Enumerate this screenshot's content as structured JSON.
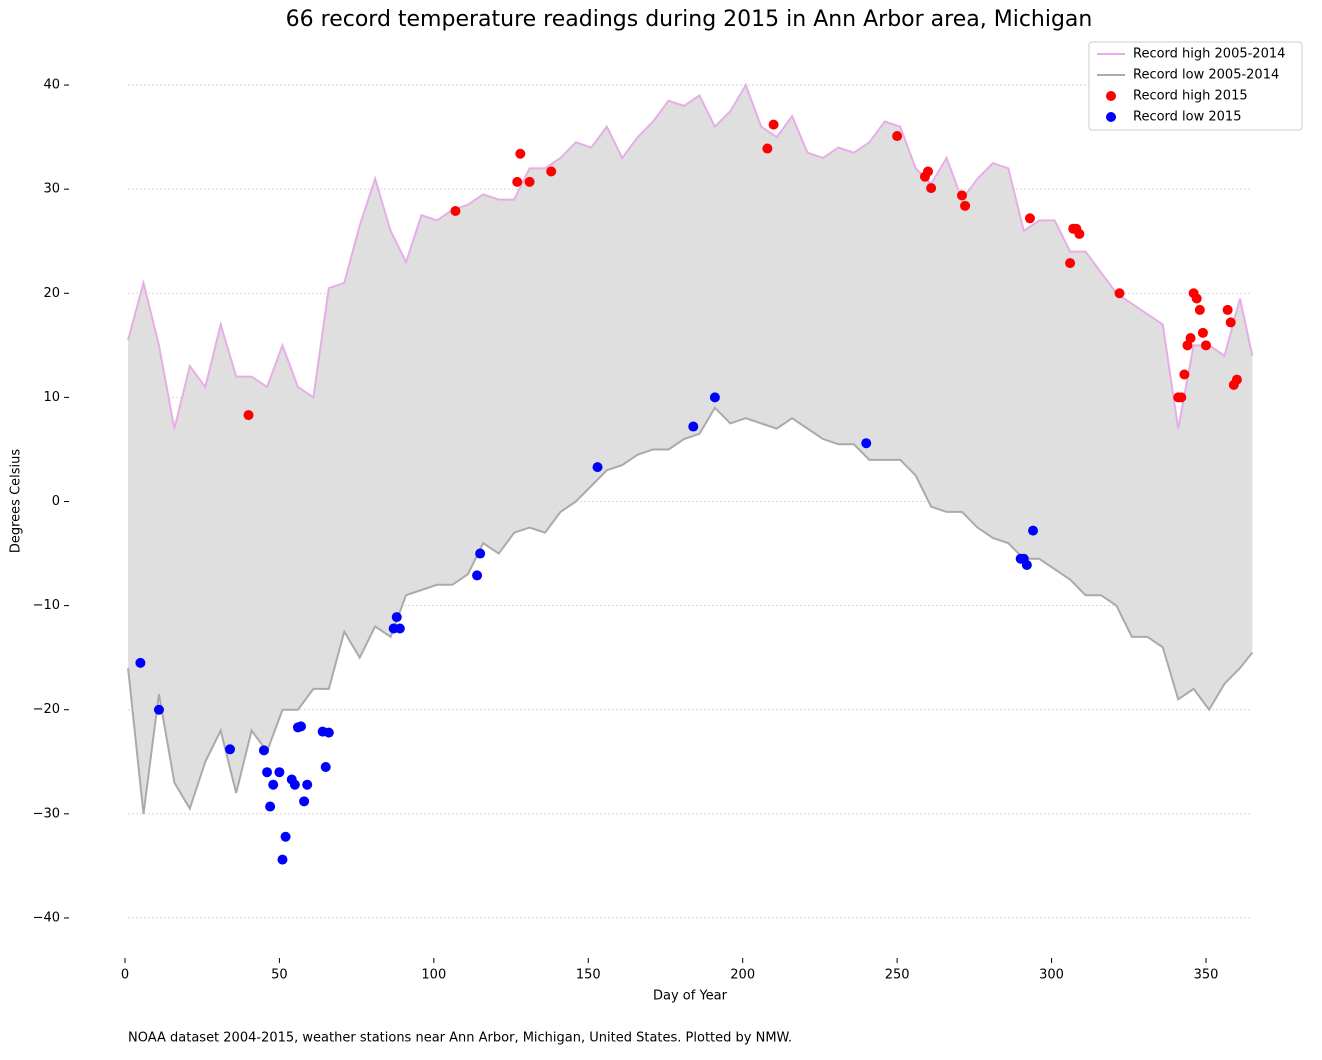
{
  "chart_data": {
    "type": "line",
    "title": "66 record temperature readings during 2015 in Ann Arbor area, Michigan",
    "x_label": "Day of Year",
    "y_label": "Degrees Celsius",
    "footnote": "NOAA dataset 2004-2015, weather stations near Ann Arbor, Michigan, United States. Plotted by NMW.",
    "xlim": [
      -3,
      368
    ],
    "ylim": [
      -44,
      44
    ],
    "xticks": [
      0,
      50,
      100,
      150,
      200,
      250,
      300,
      350
    ],
    "yticks": [
      {
        "value": -40,
        "label": "−40"
      },
      {
        "value": -30,
        "label": "−30"
      },
      {
        "value": -20,
        "label": "−20"
      },
      {
        "value": -10,
        "label": "−10"
      },
      0,
      10,
      20,
      30,
      40
    ],
    "grid": true,
    "legend": "upper right",
    "fill_between": "#dfdfdf",
    "x": [
      1,
      6,
      11,
      16,
      21,
      26,
      31,
      36,
      41,
      46,
      51,
      56,
      61,
      66,
      71,
      76,
      81,
      86,
      91,
      96,
      101,
      106,
      111,
      116,
      121,
      126,
      131,
      136,
      141,
      146,
      151,
      156,
      161,
      166,
      171,
      176,
      181,
      186,
      191,
      196,
      201,
      206,
      211,
      216,
      221,
      226,
      231,
      236,
      241,
      246,
      251,
      256,
      261,
      266,
      271,
      276,
      281,
      286,
      291,
      296,
      301,
      306,
      311,
      316,
      321,
      326,
      331,
      336,
      341,
      346,
      351,
      356,
      361,
      365
    ],
    "series": [
      {
        "name": "Record high 2005-2014",
        "type": "line",
        "color": "#e6aee6",
        "values": [
          15.5,
          21,
          15,
          7,
          13,
          11,
          17,
          12,
          12,
          11,
          15,
          11,
          10,
          20.5,
          21,
          26.5,
          31,
          26,
          23,
          27.5,
          27,
          28,
          28.5,
          29.5,
          29,
          29,
          32,
          32,
          33,
          34.5,
          34,
          36,
          33,
          35,
          36.5,
          38.5,
          38,
          39,
          36,
          37.5,
          40,
          36,
          35,
          37,
          33.5,
          33,
          34,
          33.5,
          34.5,
          36.5,
          36,
          32,
          30.5,
          33,
          29,
          31,
          32.5,
          32,
          26,
          27,
          27,
          24,
          24,
          22,
          20,
          19,
          18,
          17,
          7,
          15,
          15,
          14,
          19.5,
          14
        ]
      },
      {
        "name": "Record low 2005-2014",
        "type": "line",
        "color": "#aaaaaa",
        "values": [
          -16,
          -30,
          -18.5,
          -27,
          -29.5,
          -25,
          -22,
          -28,
          -22,
          -24,
          -20,
          -20,
          -18,
          -18,
          -12.5,
          -15,
          -12,
          -13,
          -9,
          -8.5,
          -8,
          -8,
          -7,
          -4,
          -5,
          -3,
          -2.5,
          -3,
          -1,
          0,
          1.5,
          3,
          3.5,
          4.5,
          5,
          5,
          6,
          6.5,
          9,
          7.5,
          8,
          7.5,
          7,
          8,
          7,
          6,
          5.5,
          5.5,
          4,
          4,
          4,
          2.5,
          -0.5,
          -1,
          -1,
          -2.5,
          -3.5,
          -4,
          -5.5,
          -5.5,
          -6.5,
          -7.5,
          -9,
          -9,
          -10,
          -13,
          -13,
          -14,
          -19,
          -18,
          -20,
          -17.5,
          -16,
          -14.5
        ]
      },
      {
        "name": "Record high 2015",
        "type": "scatter",
        "color": "#ff0000",
        "x": [
          40,
          107,
          127,
          128,
          131,
          138,
          208,
          210,
          250,
          259,
          260,
          261,
          271,
          272,
          293,
          306,
          307,
          308,
          309,
          322,
          341,
          342,
          343,
          344,
          345,
          346,
          347,
          348,
          349,
          350,
          357,
          358,
          359,
          360
        ],
        "values": [
          8.3,
          27.9,
          30.7,
          33.4,
          30.7,
          31.7,
          33.9,
          36.2,
          35.1,
          31.2,
          31.7,
          30.1,
          29.4,
          28.4,
          27.2,
          22.9,
          26.2,
          26.2,
          25.7,
          20.0,
          10.0,
          10.0,
          12.2,
          15.0,
          15.7,
          20.0,
          19.5,
          18.4,
          16.2,
          15.0,
          18.4,
          17.2,
          11.2,
          11.7
        ]
      },
      {
        "name": "Record low 2015",
        "type": "scatter",
        "color": "#0000ff",
        "x": [
          5,
          11,
          34,
          45,
          46,
          47,
          48,
          50,
          51,
          52,
          54,
          55,
          56,
          57,
          58,
          59,
          64,
          65,
          66,
          87,
          88,
          89,
          114,
          115,
          153,
          184,
          191,
          240,
          290,
          291,
          292,
          294
        ],
        "values": [
          -15.5,
          -20.0,
          -23.8,
          -23.9,
          -26.0,
          -29.3,
          -27.2,
          -26.0,
          -34.4,
          -32.2,
          -26.7,
          -27.2,
          -21.7,
          -21.6,
          -28.8,
          -27.2,
          -22.1,
          -25.5,
          -22.2,
          -12.2,
          -11.1,
          -12.2,
          -7.1,
          -5.0,
          3.3,
          7.2,
          10.0,
          5.6,
          -5.5,
          -5.5,
          -6.1,
          -2.8
        ]
      }
    ]
  }
}
